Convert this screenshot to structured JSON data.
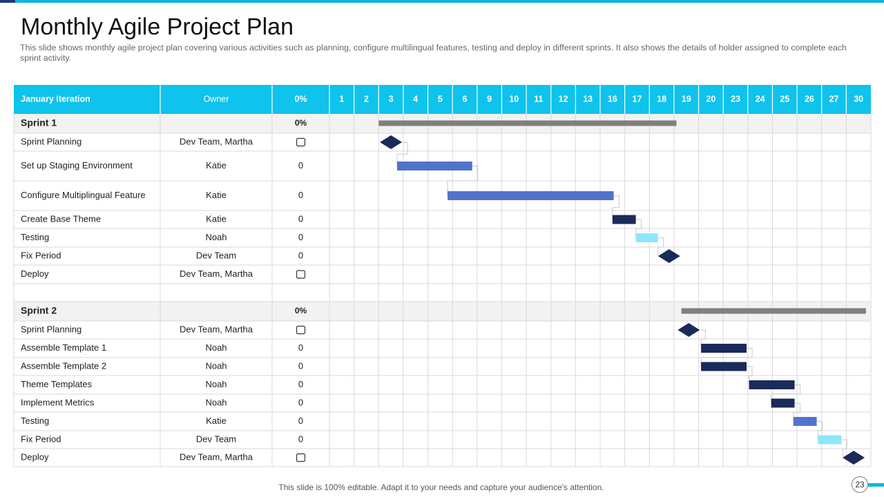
{
  "slide": {
    "title": "Monthly Agile Project Plan",
    "subtitle": "This slide shows monthly agile project plan covering various activities such as planning, configure multilingual features, testing and deploy in different  sprints. It also shows the details of holder assigned to complete each sprint activity.",
    "footer": "This slide is 100% editable. Adapt it to your needs and capture your audience's attention.",
    "page_number": "23"
  },
  "colors": {
    "header": "#0fc3ec",
    "sprint_row": "#f2f2f2",
    "sprint_bar": "#7f7f7f",
    "blue": "#5173cc",
    "navy": "#1a2a5a",
    "light": "#8fe6fb",
    "grid": "#d9d9d9"
  },
  "table": {
    "header": {
      "iteration": "January Iteration",
      "owner": "Owner",
      "percent": "0%"
    },
    "days": [
      "1",
      "2",
      "3",
      "4",
      "5",
      "6",
      "9",
      "10",
      "11",
      "12",
      "13",
      "16",
      "17",
      "18",
      "19",
      "20",
      "23",
      "24",
      "25",
      "26",
      "27",
      "30"
    ],
    "rows": [
      {
        "type": "sprint",
        "task": "Sprint 1",
        "owner": "",
        "percent": "0%",
        "bar": {
          "kind": "summary",
          "start": 2,
          "end": 14.1
        }
      },
      {
        "type": "task",
        "task": "Sprint Planning",
        "owner": "Dev Team,  Martha",
        "percent": "",
        "checkbox": true,
        "bar": {
          "kind": "milestone",
          "at": 2.5,
          "color": "navy"
        }
      },
      {
        "type": "task",
        "task": "Set up Staging Environment",
        "owner": "Katie",
        "percent": "0",
        "bar": {
          "kind": "bar",
          "start": 2.75,
          "end": 5.8,
          "color": "blue"
        }
      },
      {
        "type": "task",
        "task": "Configure  Multiplingual Feature",
        "owner": "Katie",
        "percent": "0",
        "bar": {
          "kind": "bar",
          "start": 4.8,
          "end": 6.8,
          "color": "blue"
        }
      },
      {
        "type": "task",
        "task": "Create Base Theme",
        "owner": "Katie",
        "percent": "0",
        "bar": {
          "kind": "bar",
          "start": 5.5,
          "end": 11.55,
          "color": "blue",
          "row_offset": -1
        }
      },
      {
        "type": "task",
        "task": "Testing",
        "owner": "Noah",
        "percent": "0",
        "bar": {
          "kind": "bar",
          "start": 11.5,
          "end": 12.45,
          "color": "navy",
          "row_offset": -1
        }
      },
      {
        "type": "task",
        "task": "Fix Period",
        "owner": "Dev Team",
        "percent": "0",
        "bar": {
          "kind": "bar",
          "start": 12.45,
          "end": 13.35,
          "color": "light",
          "row_offset": -1
        }
      },
      {
        "type": "task",
        "task": "Deploy",
        "owner": "Dev Team,  Martha",
        "percent": "",
        "checkbox": true,
        "bar": {
          "kind": "milestone",
          "at": 13.8,
          "color": "navy",
          "row_offset": -1
        }
      },
      {
        "type": "blank",
        "task": "",
        "owner": "",
        "percent": ""
      },
      {
        "type": "sprint",
        "task": "Sprint 2",
        "owner": "",
        "percent": "0%",
        "bar": {
          "kind": "summary",
          "start": 14.3,
          "end": 21.8
        }
      },
      {
        "type": "task",
        "task": "Sprint Planning",
        "owner": "Dev Team,  Martha",
        "percent": "",
        "checkbox": true,
        "bar": {
          "kind": "milestone",
          "at": 14.6,
          "color": "navy"
        }
      },
      {
        "type": "task",
        "task": "Assemble Template  1",
        "owner": "Noah",
        "percent": "0",
        "bar": {
          "kind": "bar",
          "start": 15.1,
          "end": 16.95,
          "color": "navy"
        }
      },
      {
        "type": "task",
        "task": "Assemble Template  2",
        "owner": "Noah",
        "percent": "0",
        "bar": {
          "kind": "bar",
          "start": 15.1,
          "end": 16.95,
          "color": "navy"
        }
      },
      {
        "type": "task",
        "task": "Theme Templates",
        "owner": "Noah",
        "percent": "0",
        "bar": {
          "kind": "bar",
          "start": 17.05,
          "end": 18.9,
          "color": "navy"
        }
      },
      {
        "type": "task",
        "task": "Implement  Metrics",
        "owner": "Noah",
        "percent": "0",
        "bar": {
          "kind": "bar",
          "start": 17.95,
          "end": 18.9,
          "color": "navy"
        }
      },
      {
        "type": "task",
        "task": "Testing",
        "owner": "Katie",
        "percent": "0",
        "bar": {
          "kind": "bar",
          "start": 18.85,
          "end": 19.8,
          "color": "blue"
        }
      },
      {
        "type": "task",
        "task": "Fix Period",
        "owner": "Dev Team",
        "percent": "0",
        "bar": {
          "kind": "bar",
          "start": 19.85,
          "end": 20.8,
          "color": "light"
        }
      },
      {
        "type": "task",
        "task": "Deploy",
        "owner": "Dev Team,  Martha",
        "percent": "",
        "checkbox": true,
        "bar": {
          "kind": "milestone",
          "at": 21.3,
          "color": "navy"
        }
      }
    ]
  }
}
